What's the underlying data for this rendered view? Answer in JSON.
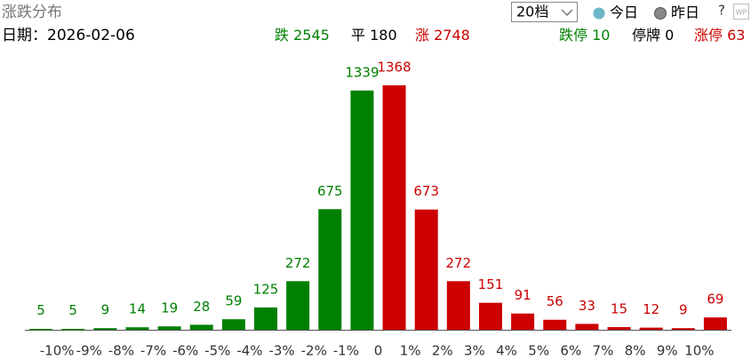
{
  "header": {
    "title": "涨跌分布",
    "dropdown": "20档",
    "legend": [
      "今日",
      "昨日"
    ],
    "help": "?",
    "icon": "WP"
  },
  "info": {
    "date_label": "日期：",
    "date": "2026-02-06",
    "stats": [
      {
        "label": "跌",
        "value": 2545,
        "color": "#008000"
      },
      {
        "label": "平",
        "value": 180,
        "color": "#000000"
      },
      {
        "label": "涨",
        "value": 2748,
        "color": "#cc0000"
      },
      {
        "label": "跌停",
        "value": 10,
        "color": "#008000"
      },
      {
        "label": "停牌",
        "value": 0,
        "color": "#000000"
      },
      {
        "label": "涨停",
        "value": 63,
        "color": "#cc0000"
      }
    ]
  },
  "chart_data": {
    "type": "histogram",
    "bins": [
      null,
      {
        "value": -10,
        "label": "-10%"
      },
      {
        "value": -9,
        "label": "-9%"
      },
      {
        "value": -8,
        "label": "-8%"
      },
      {
        "value": -7,
        "label": "-7%"
      },
      {
        "value": -6,
        "label": "-6%"
      },
      {
        "value": -5,
        "label": "-5%"
      },
      {
        "value": -4,
        "label": "-4%"
      },
      {
        "value": -3,
        "label": "-3%"
      },
      {
        "value": -2,
        "label": "-2%"
      },
      {
        "value": -1,
        "label": "-1%"
      },
      0,
      {
        "value": 1,
        "label": "1%"
      },
      {
        "value": 2,
        "label": "2%"
      },
      {
        "value": 3,
        "label": "3%"
      },
      {
        "value": 4,
        "label": "4%"
      },
      {
        "value": 5,
        "label": "5%"
      },
      {
        "value": 6,
        "label": "6%"
      },
      {
        "value": 7,
        "label": "7%"
      },
      {
        "value": 8,
        "label": "8%"
      },
      {
        "value": 9,
        "label": "9%"
      },
      {
        "value": 10,
        "label": "10%"
      },
      null
    ],
    "values": [
      5,
      5,
      9,
      14,
      19,
      28,
      59,
      125,
      272,
      675,
      1339,
      1368,
      673,
      272,
      151,
      91,
      56,
      33,
      15,
      12,
      9,
      69
    ],
    "colors": [
      "#008000",
      "#008000",
      "#008000",
      "#008000",
      "#008000",
      "#008000",
      "#008000",
      "#008000",
      "#008000",
      "#008000",
      "#008000",
      "#cc0000",
      "#cc0000",
      "#cc0000",
      "#cc0000",
      "#cc0000",
      "#cc0000",
      "#cc0000",
      "#cc0000",
      "#cc0000",
      "#cc0000",
      "#cc0000"
    ],
    "ylim": [
      0,
      1368
    ]
  }
}
